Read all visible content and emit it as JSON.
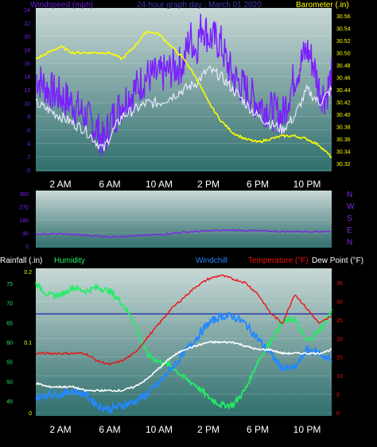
{
  "header": {
    "left_label": "Windspeed (mph)",
    "center_label": "24-hour graph day : March 01 2020",
    "right_label": "Barometer (.in)"
  },
  "bottom_header": {
    "rainfall": "Rainfall (.in)",
    "humidity": "Humidity",
    "windchill": "Windchill",
    "temperature": "Temperature (°F)",
    "dewpoint": "Dew Point (°F)"
  },
  "time_labels": [
    "2 AM",
    "6 AM",
    "10 AM",
    "2 PM",
    "6 PM",
    "10 PM"
  ],
  "colors": {
    "panel_top": "#c8d8d6",
    "panel_bottom": "#2e6e6c",
    "wind_max": "#7a1fff",
    "wind_avg": "#e8e8ff",
    "barometer": "#ffff00",
    "direction": "#7a2ee0",
    "humidity": "#22ee66",
    "windchill": "#2288ff",
    "temperature": "#ee1111",
    "dewpoint": "#ffffff",
    "rain": "#2222aa",
    "left_axis": "#7a1fff",
    "right_axis": "#ffff00",
    "humidity_axis": "#22ee66",
    "temp_axis": "#ee1111"
  },
  "chart_data": [
    {
      "type": "line",
      "x_unit": "hour",
      "xlim": [
        0,
        24
      ],
      "y_left_ticks": [
        0,
        2,
        4,
        6,
        8,
        10,
        12,
        14,
        16,
        18,
        20,
        22,
        24
      ],
      "y_left_lim": [
        0,
        24
      ],
      "y_right_ticks": [
        30.32,
        30.34,
        30.36,
        30.38,
        30.4,
        30.42,
        30.44,
        30.46,
        30.48,
        30.5,
        30.52,
        30.54,
        30.56
      ],
      "y_right_lim": [
        30.31,
        30.57
      ],
      "series": [
        {
          "name": "Windspeed (mph)",
          "axis": "left",
          "x": [
            0,
            1,
            2,
            3,
            4,
            5,
            5.5,
            6,
            7,
            8,
            9,
            10,
            11,
            12,
            12.5,
            13,
            13.5,
            14,
            15,
            15.5,
            16,
            17,
            18,
            19,
            20,
            21,
            22,
            22.5,
            23,
            23.5,
            24
          ],
          "y": [
            14,
            12,
            11,
            10,
            8,
            6,
            4,
            7,
            10,
            12,
            14,
            14,
            15,
            16,
            20,
            18,
            22,
            20,
            19,
            16,
            14,
            12,
            10,
            9,
            8,
            14,
            18,
            16,
            12,
            11,
            14
          ]
        },
        {
          "name": "Windspeed avg",
          "axis": "left",
          "x": [
            0,
            1,
            2,
            3,
            4,
            5,
            5.5,
            6,
            7,
            8,
            9,
            10,
            11,
            12,
            13,
            14,
            15,
            16,
            17,
            18,
            19,
            20,
            21,
            22,
            23,
            24
          ],
          "y": [
            10,
            9,
            8,
            7,
            6,
            4,
            3,
            5,
            8,
            9,
            10,
            10,
            11,
            12,
            13,
            15,
            14,
            12,
            10,
            8,
            7,
            6,
            8,
            12,
            10,
            12
          ]
        },
        {
          "name": "Barometer (.in)",
          "axis": "right",
          "x": [
            0,
            1,
            2,
            3,
            4,
            5,
            6,
            7,
            8,
            9,
            10,
            11,
            12,
            13,
            14,
            15,
            16,
            17,
            18,
            19,
            20,
            21,
            22,
            23,
            24
          ],
          "y": [
            30.49,
            30.5,
            30.51,
            30.5,
            30.5,
            30.5,
            30.5,
            30.49,
            30.51,
            30.535,
            30.53,
            30.51,
            30.49,
            30.46,
            30.42,
            30.39,
            30.37,
            30.36,
            30.355,
            30.36,
            30.365,
            30.365,
            30.36,
            30.35,
            30.33
          ]
        }
      ]
    },
    {
      "type": "line",
      "x_unit": "hour",
      "xlim": [
        0,
        24
      ],
      "y_ticks": [
        0,
        90,
        180,
        270,
        360
      ],
      "ylim": [
        0,
        360
      ],
      "direction_labels": [
        "N",
        "W",
        "S",
        "E",
        "N"
      ],
      "series": [
        {
          "name": "Wind direction",
          "x": [
            0,
            2,
            4,
            6,
            8,
            10,
            12,
            14,
            16,
            18,
            20,
            22,
            24
          ],
          "y": [
            80,
            85,
            75,
            65,
            70,
            80,
            95,
            105,
            110,
            105,
            100,
            100,
            100
          ]
        }
      ]
    },
    {
      "type": "line",
      "x_unit": "hour",
      "xlim": [
        0,
        24
      ],
      "y_humidity_ticks": [
        45,
        50,
        55,
        60,
        65,
        70,
        75
      ],
      "y_humidity_lim": [
        42,
        78
      ],
      "y_temp_ticks": [
        0,
        5,
        10,
        15,
        20,
        25,
        30,
        35
      ],
      "y_temp_lim": [
        0,
        38
      ],
      "y_rain_ticks": [
        0,
        0.1,
        0.2
      ],
      "y_rain_lim": [
        0,
        0.2
      ],
      "series": [
        {
          "name": "Humidity",
          "axis": "humidity",
          "x": [
            0,
            1,
            2,
            3,
            4,
            5,
            6,
            7,
            8,
            9,
            10,
            11,
            12,
            13,
            14,
            15,
            16,
            17,
            18,
            19,
            20,
            21,
            22,
            23,
            24
          ],
          "y": [
            75,
            72,
            72,
            74,
            73,
            74,
            73,
            70,
            65,
            57,
            55,
            54,
            51,
            49,
            46,
            44,
            44,
            48,
            55,
            60,
            65,
            66,
            60,
            63,
            68
          ]
        },
        {
          "name": "Temperature (°F)",
          "axis": "temp",
          "x": [
            0,
            1,
            2,
            3,
            4,
            5,
            6,
            7,
            8,
            9,
            10,
            11,
            12,
            13,
            14,
            15,
            16,
            17,
            18,
            19,
            20,
            21,
            22,
            23,
            24
          ],
          "y": [
            16,
            16,
            16,
            16,
            16,
            14,
            13,
            14,
            16,
            20,
            24,
            28,
            31,
            34,
            36,
            37,
            36,
            35,
            32,
            27,
            24,
            32,
            28,
            24,
            26
          ]
        },
        {
          "name": "Windchill",
          "axis": "temp",
          "x": [
            0,
            1,
            2,
            3,
            4,
            5,
            6,
            7,
            8,
            9,
            10,
            11,
            12,
            13,
            14,
            15,
            16,
            17,
            18,
            19,
            20,
            21,
            22,
            23,
            24
          ],
          "y": [
            4,
            5,
            5,
            6,
            5,
            2,
            1,
            2,
            3,
            5,
            8,
            12,
            16,
            20,
            24,
            26,
            26,
            24,
            20,
            16,
            12,
            12,
            17,
            16,
            14
          ]
        },
        {
          "name": "Dew Point (°F)",
          "axis": "temp",
          "x": [
            0,
            1,
            2,
            3,
            4,
            5,
            6,
            7,
            8,
            9,
            10,
            11,
            12,
            13,
            14,
            15,
            16,
            17,
            18,
            19,
            20,
            21,
            22,
            23,
            24
          ],
          "y": [
            8,
            7,
            7,
            7,
            6,
            6,
            6,
            6,
            7,
            9,
            12,
            15,
            17,
            18,
            19,
            19,
            19,
            18,
            17,
            17,
            16,
            16,
            16,
            16,
            17
          ]
        },
        {
          "name": "Rainfall (.in)",
          "axis": "rain",
          "x": [
            0,
            24
          ],
          "y": [
            0.14,
            0.14
          ]
        }
      ]
    }
  ]
}
